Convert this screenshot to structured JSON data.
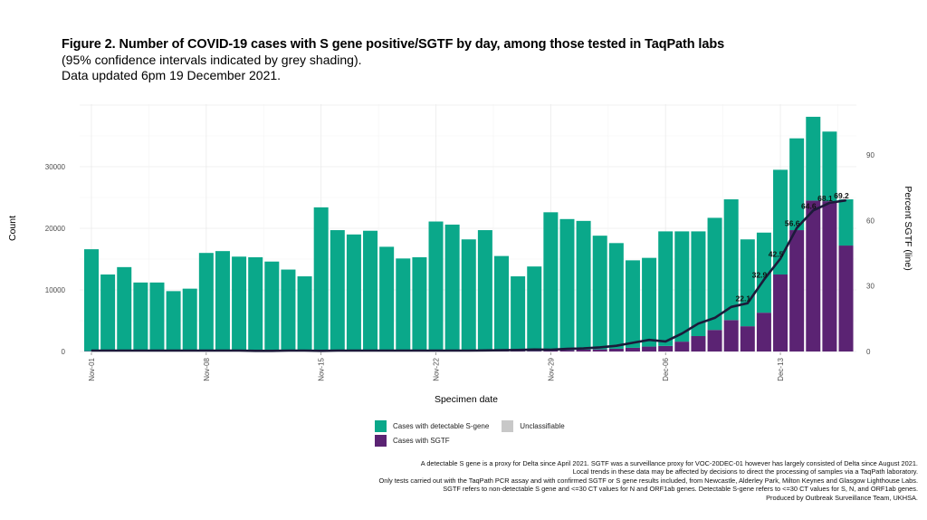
{
  "figure": {
    "title": "Figure 2. Number of COVID-19 cases with S gene positive/SGTF by day, among those tested in TaqPath labs",
    "subtitle_line1": "(95% confidence intervals indicated by grey shading).",
    "subtitle_line2": "Data updated 6pm 19 December 2021."
  },
  "colors": {
    "s_gene": "#0aa88a",
    "sgtf": "#5b2373",
    "unclassifiable": "#c8c8c8",
    "line": "#1c1a3a"
  },
  "legend": {
    "items": [
      {
        "label": "Cases with detectable S-gene",
        "color_key": "s_gene"
      },
      {
        "label": "Unclassifiable",
        "color_key": "unclassifiable"
      },
      {
        "label": "Cases with SGTF",
        "color_key": "sgtf"
      }
    ]
  },
  "footnote": {
    "lines": [
      "A detectable S gene is a proxy for Delta since April 2021. SGTF was a surveillance proxy for VOC-20DEC-01 however has largely consisted of Delta since August 2021.",
      "Local trends in these data may be affected by decisions to direct the processing of samples via a TaqPath laboratory.",
      "Only tests carried out with the TaqPath PCR assay and with confirmed SGTF or S gene results included, from Newcastle, Alderley Park, Milton Keynes and Glasgow Lighthouse Labs.",
      "SGTF refers to non-detectable S gene and <=30 CT values for N and ORF1ab genes. Detectable S-gene refers to <=30 CT values for S, N, and ORF1ab genes.",
      "Produced by Outbreak Surveillance Team, UKHSA."
    ]
  },
  "chart_data": {
    "type": "bar",
    "stacked": true,
    "title": "Figure 2. Number of COVID-19 cases with S gene positive/SGTF by day, among those tested in TaqPath labs",
    "xlabel": "Specimen date",
    "ylabel": "Count",
    "y2label": "Percent SGTF (line)",
    "ylim": [
      0,
      40000
    ],
    "y2lim": [
      0,
      112
    ],
    "yticks": [
      0,
      10000,
      20000,
      30000
    ],
    "y2ticks": [
      0,
      30,
      60,
      90
    ],
    "xtick_labels": [
      "Nov-01",
      "Nov-08",
      "Nov-15",
      "Nov-22",
      "Nov-29",
      "Dec-06",
      "Dec-13"
    ],
    "xtick_indices": [
      0,
      7,
      14,
      21,
      28,
      35,
      42
    ],
    "grid": true,
    "legend_position": "bottom",
    "categories": [
      "Nov-01",
      "Nov-02",
      "Nov-03",
      "Nov-04",
      "Nov-05",
      "Nov-06",
      "Nov-07",
      "Nov-08",
      "Nov-09",
      "Nov-10",
      "Nov-11",
      "Nov-12",
      "Nov-13",
      "Nov-14",
      "Nov-15",
      "Nov-16",
      "Nov-17",
      "Nov-18",
      "Nov-19",
      "Nov-20",
      "Nov-21",
      "Nov-22",
      "Nov-23",
      "Nov-24",
      "Nov-25",
      "Nov-26",
      "Nov-27",
      "Nov-28",
      "Nov-29",
      "Nov-30",
      "Dec-01",
      "Dec-02",
      "Dec-03",
      "Dec-04",
      "Dec-05",
      "Dec-06",
      "Dec-07",
      "Dec-08",
      "Dec-09",
      "Dec-10",
      "Dec-11",
      "Dec-12",
      "Dec-13",
      "Dec-14",
      "Dec-15",
      "Dec-16",
      "Dec-17"
    ],
    "series": [
      {
        "name": "Cases with SGTF",
        "type": "bar",
        "color_key": "sgtf",
        "values": [
          60,
          50,
          50,
          50,
          50,
          40,
          40,
          60,
          60,
          60,
          50,
          50,
          50,
          50,
          80,
          70,
          70,
          70,
          70,
          60,
          60,
          80,
          80,
          80,
          90,
          90,
          90,
          120,
          180,
          250,
          300,
          350,
          450,
          600,
          800,
          900,
          1600,
          2500,
          3500,
          5100,
          4100,
          6300,
          12500,
          19700,
          24500,
          24400,
          17200
        ]
      },
      {
        "name": "Cases with detectable S-gene",
        "type": "bar",
        "color_key": "s_gene",
        "values": [
          16540,
          12450,
          13650,
          11150,
          11150,
          9760,
          10160,
          15940,
          16240,
          15340,
          15250,
          14550,
          13250,
          12150,
          23320,
          19630,
          18930,
          19530,
          16930,
          15040,
          15240,
          21020,
          20520,
          18120,
          19610,
          15410,
          12110,
          13680,
          22420,
          21250,
          20900,
          18450,
          17150,
          14200,
          14400,
          18600,
          17900,
          17000,
          18200,
          19600,
          14100,
          13000,
          17000,
          14900,
          13600,
          11300,
          7500
        ]
      },
      {
        "name": "Percent SGTF",
        "type": "line",
        "color_key": "line",
        "values": [
          0.4,
          0.4,
          0.4,
          0.4,
          0.4,
          0.4,
          0.4,
          0.4,
          0.4,
          0.4,
          0.3,
          0.3,
          0.4,
          0.4,
          0.3,
          0.4,
          0.4,
          0.4,
          0.4,
          0.4,
          0.4,
          0.4,
          0.4,
          0.4,
          0.5,
          0.6,
          0.7,
          0.9,
          0.8,
          1.2,
          1.4,
          1.9,
          2.6,
          4.0,
          5.3,
          4.6,
          8.2,
          12.8,
          15.4,
          20.4,
          22.1,
          32.9,
          42.5,
          56.6,
          64.6,
          68.1,
          69.2
        ]
      }
    ],
    "data_labels": [
      {
        "index": 40,
        "text": "22.1"
      },
      {
        "index": 41,
        "text": "32.9"
      },
      {
        "index": 42,
        "text": "42.5"
      },
      {
        "index": 43,
        "text": "56.6"
      },
      {
        "index": 44,
        "text": "64.6"
      },
      {
        "index": 45,
        "text": "68.1"
      },
      {
        "index": 46,
        "text": "69.2"
      }
    ]
  }
}
